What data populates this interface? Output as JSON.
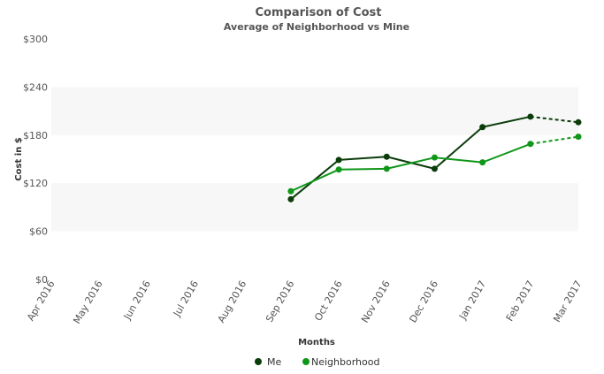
{
  "chart_data": {
    "type": "line",
    "title": "Comparison of Cost",
    "subtitle": "Average of Neighborhood vs Mine",
    "xlabel": "Months",
    "ylabel": "Cost in $",
    "ylim": [
      0,
      300
    ],
    "yticks": [
      "$0",
      "$60",
      "$120",
      "$180",
      "$240",
      "$300"
    ],
    "ytick_values": [
      0,
      60,
      120,
      180,
      240,
      300
    ],
    "categories": [
      "Apr 2016",
      "May 2016",
      "Jun 2016",
      "Jul 2016",
      "Aug 2016",
      "Sep 2016",
      "Oct 2016",
      "Nov 2016",
      "Dec 2016",
      "Jan 2017",
      "Feb 2017",
      "Mar 2017"
    ],
    "grid": false,
    "alternating_bands": true,
    "legend_position": "bottom",
    "dashed_last_segment": true,
    "series": [
      {
        "name": "Me",
        "color": "#0b3d0b",
        "values": [
          null,
          null,
          null,
          null,
          null,
          100,
          149,
          153,
          138,
          190,
          203,
          196
        ]
      },
      {
        "name": "Neighborhood",
        "color": "#109618",
        "values": [
          null,
          null,
          null,
          null,
          null,
          110,
          137,
          138,
          152,
          146,
          169,
          178
        ]
      }
    ]
  }
}
